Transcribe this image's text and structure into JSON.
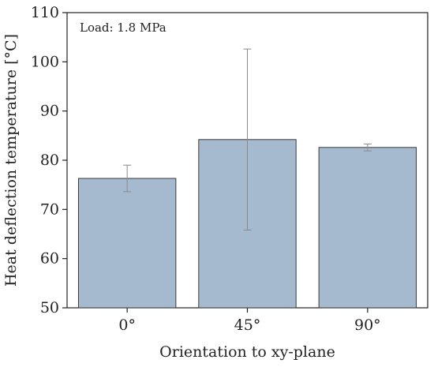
{
  "chart_data": {
    "type": "bar",
    "categories": [
      "0°",
      "45°",
      "90°"
    ],
    "values": [
      76.3,
      84.2,
      82.6
    ],
    "error_bars": [
      {
        "low": 73.6,
        "high": 79.0
      },
      {
        "low": 65.8,
        "high": 102.6
      },
      {
        "low": 81.9,
        "high": 83.3
      }
    ],
    "xlabel": "Orientation to xy-plane",
    "ylabel": "Heat deflection temperature [°C]",
    "ylim": [
      50,
      110
    ],
    "yticks": [
      "50",
      "60",
      "70",
      "80",
      "90",
      "100",
      "110"
    ],
    "annotation": "Load: 1.8 MPa",
    "grid": false,
    "colors": {
      "bar_fill": "#a6bacf",
      "bar_stroke": "#3a3a3a",
      "error_bar": "#8a8a8a",
      "axis": "#222222"
    }
  }
}
